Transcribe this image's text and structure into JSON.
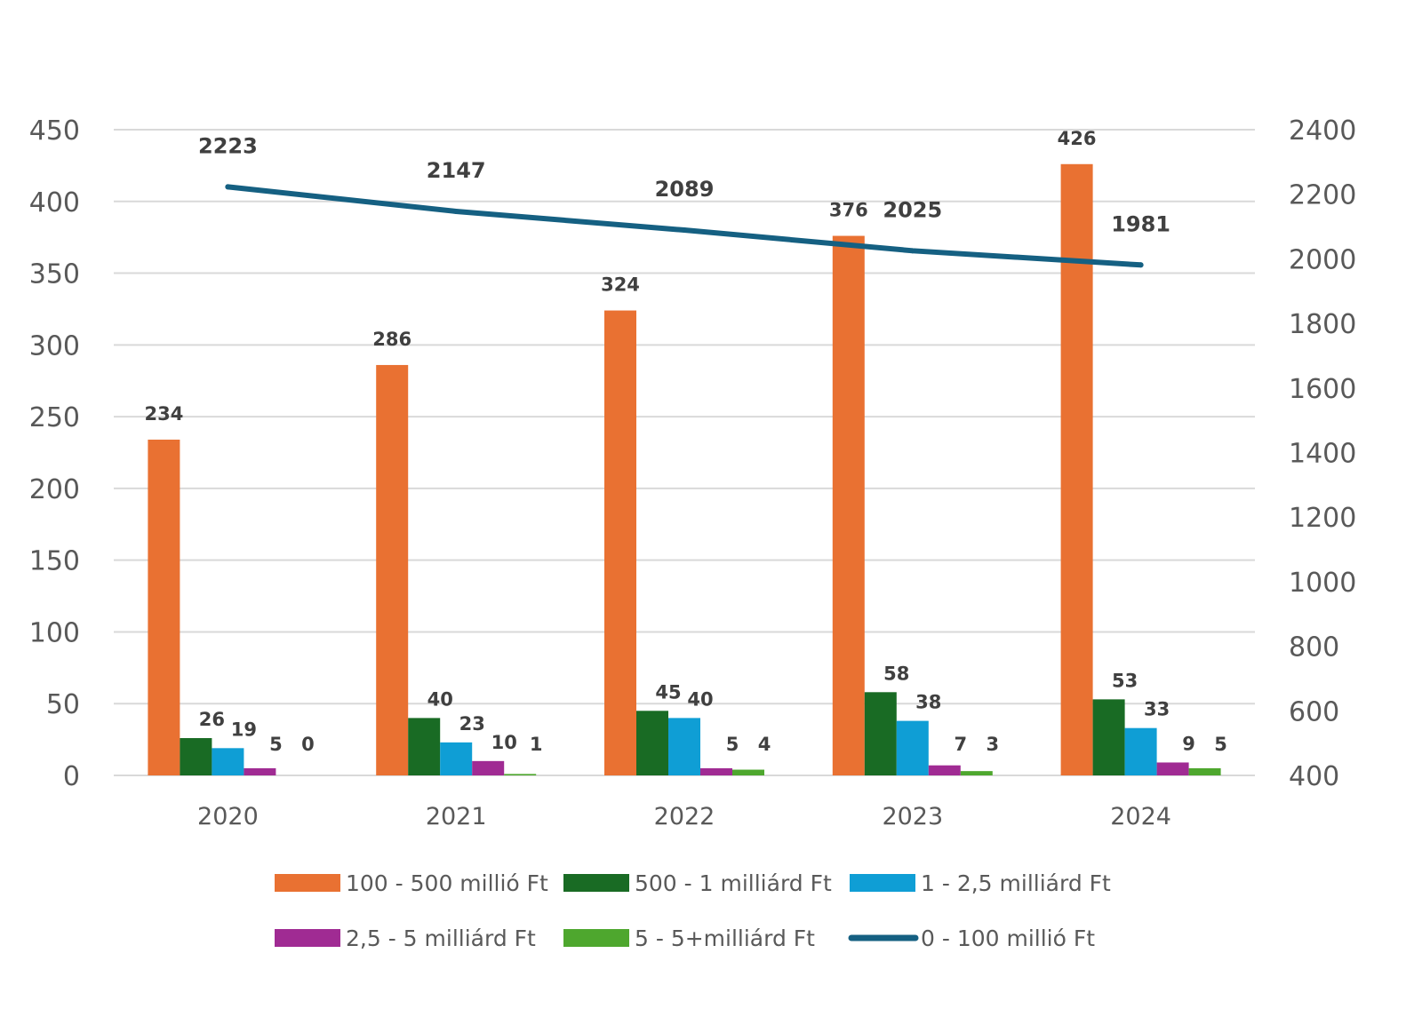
{
  "chart_data": {
    "type": "bar",
    "categories": [
      "2020",
      "2021",
      "2022",
      "2023",
      "2024"
    ],
    "series": [
      {
        "name": "100 - 500 millió Ft",
        "type": "bar",
        "axis": "left",
        "color": "#E97132",
        "values": [
          234,
          286,
          324,
          376,
          426
        ]
      },
      {
        "name": "500 - 1 milliárd Ft",
        "type": "bar",
        "axis": "left",
        "color": "#196B24",
        "values": [
          26,
          40,
          45,
          58,
          53
        ]
      },
      {
        "name": "1 - 2,5 milliárd Ft",
        "type": "bar",
        "axis": "left",
        "color": "#0F9ED5",
        "values": [
          19,
          23,
          40,
          38,
          33
        ]
      },
      {
        "name": "2,5 - 5 milliárd Ft",
        "type": "bar",
        "axis": "left",
        "color": "#A02B93",
        "values": [
          5,
          10,
          5,
          7,
          9
        ]
      },
      {
        "name": "5 - 5+milliárd Ft",
        "type": "bar",
        "axis": "left",
        "color": "#4EA72E",
        "values": [
          0,
          1,
          4,
          3,
          5
        ]
      },
      {
        "name": "0 - 100 millió Ft",
        "type": "line",
        "axis": "right",
        "color": "#156082",
        "values": [
          2223,
          2147,
          2089,
          2025,
          1981
        ]
      }
    ],
    "left_axis": {
      "min": 0,
      "max": 450,
      "step": 50,
      "ticks": [
        "0",
        "50",
        "100",
        "150",
        "200",
        "250",
        "300",
        "350",
        "400",
        "450"
      ]
    },
    "right_axis": {
      "min": 400,
      "max": 2400,
      "step": 200,
      "ticks": [
        "400",
        "600",
        "800",
        "1000",
        "1200",
        "1400",
        "1600",
        "1800",
        "2000",
        "2200",
        "2400"
      ]
    },
    "grid": true,
    "legend_position": "bottom",
    "title": "",
    "xlabel": "",
    "ylabel": ""
  }
}
